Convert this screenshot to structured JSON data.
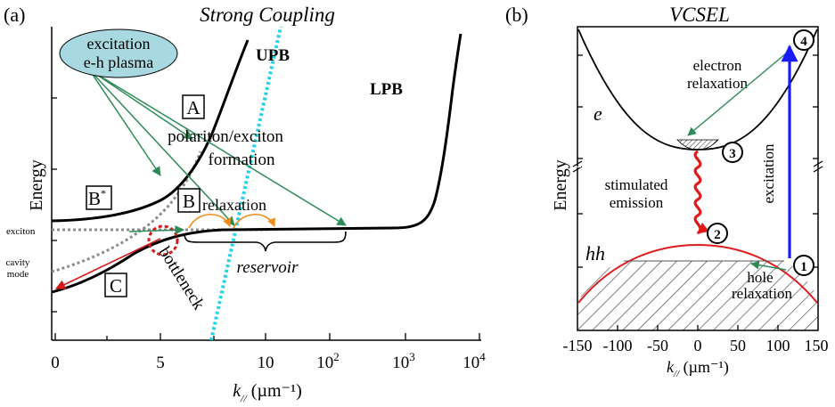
{
  "panel_a": {
    "tag": "(a)",
    "title": "Strong Coupling",
    "y_axis_label": "Energy",
    "x_axis_label_k": "k",
    "x_axis_label_sub": "//",
    "x_axis_label_unit": " (µm⁻¹)",
    "x_ticks": [
      {
        "label": "0",
        "sup": ""
      },
      {
        "label": "5",
        "sup": ""
      },
      {
        "label": "10",
        "sup": ""
      },
      {
        "label": "10",
        "sup": "2"
      },
      {
        "label": "10",
        "sup": "3"
      },
      {
        "label": "10",
        "sup": "4"
      }
    ],
    "excitation_line1": "excitation",
    "excitation_line2": "e-h plasma",
    "label_upb": "UPB",
    "label_lpb": "LPB",
    "box_a": "A",
    "box_b": "B",
    "box_bstar": "B",
    "box_bstar_sup": "*",
    "box_c": "C",
    "formation_line1": "polariton/exciton",
    "formation_line2": "formation",
    "relaxation": "relaxation",
    "reservoir": "reservoir",
    "bottleneck": "bottleneck",
    "exciton": "exciton",
    "cavity_line1": "cavity",
    "cavity_line2": "mode",
    "colors": {
      "green_arrow": "#2e8b57",
      "cyan": "#1fd3e6",
      "orange": "#f08c1a",
      "red": "#d41a1a",
      "gray": "#8c8c8c",
      "bubble": "#a8d8e0"
    }
  },
  "panel_b": {
    "tag": "(b)",
    "title": "VCSEL",
    "y_axis_label": "Energy",
    "x_axis_label_k": "k",
    "x_axis_label_sub": "//",
    "x_axis_label_unit": " (µm⁻¹)",
    "x_ticks": [
      "-150",
      "-100",
      "-50",
      "0",
      "50",
      "100",
      "150"
    ],
    "band_e": "e",
    "band_hh": "hh",
    "electron_line1": "electron",
    "electron_line2": "relaxation",
    "stimulated_line1": "stimulated",
    "stimulated_line2": "emission",
    "excitation": "excitation",
    "hole_line1": "hole",
    "hole_line2": "relaxation",
    "steps": [
      "1",
      "2",
      "3",
      "4"
    ],
    "colors": {
      "blue": "#1a1aff",
      "red": "#e01a1a",
      "green": "#2e8b57"
    }
  }
}
